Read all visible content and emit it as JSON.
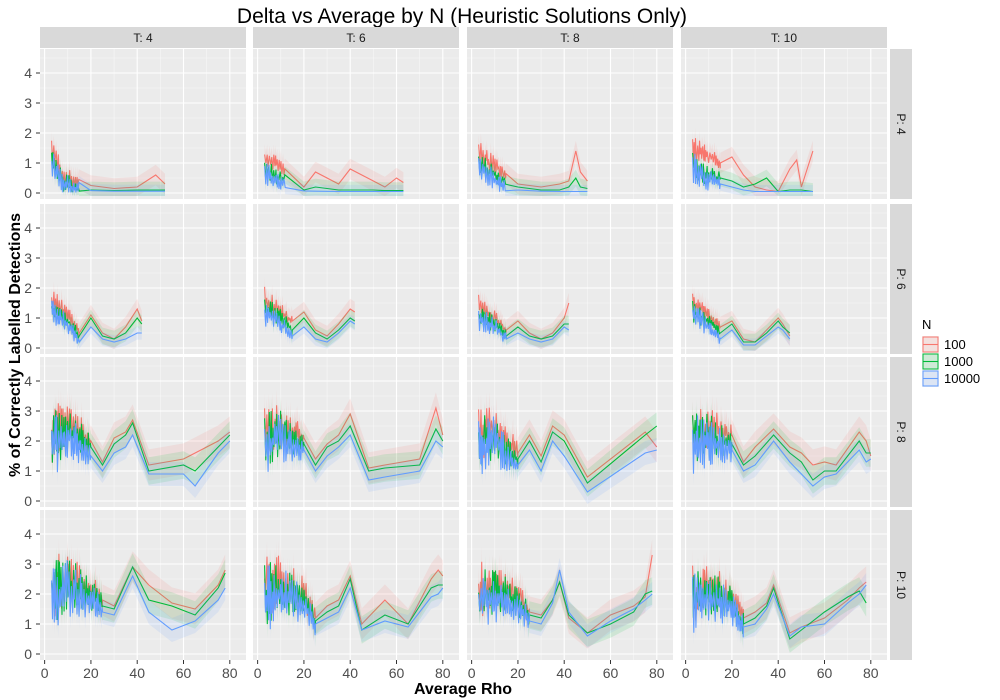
{
  "chart_data": {
    "type": "line",
    "title": "Delta vs Average by N (Heuristic Solutions Only)",
    "xlabel": "Average Rho",
    "ylabel": "% of Correctly Labelled Detections",
    "xlim": [
      -2,
      87
    ],
    "ylim": [
      -0.2,
      4.8
    ],
    "x_ticks": [
      0,
      20,
      40,
      60,
      80
    ],
    "y_ticks": [
      0,
      1,
      2,
      3,
      4
    ],
    "grid": true,
    "legend_position": "right",
    "legend_title": "N",
    "columns": [
      "T: 4",
      "T: 6",
      "T: 8",
      "T: 10"
    ],
    "rows": [
      "P: 4",
      "P: 6",
      "P: 8",
      "P: 10"
    ],
    "series": [
      {
        "name": "100",
        "color": "#f8766d"
      },
      {
        "name": "1000",
        "color": "#00ba38"
      },
      {
        "name": "10000",
        "color": "#619cff"
      }
    ],
    "panels": [
      {
        "col": "T: 4",
        "row": "P: 4",
        "x": [
          3,
          8,
          12,
          20,
          30,
          40,
          48,
          52
        ],
        "series": [
          [
            1.4,
            0.6,
            0.4,
            0.25,
            0.15,
            0.2,
            0.6,
            0.3
          ],
          [
            1.1,
            0.4,
            0.2,
            0.1,
            0.08,
            0.1,
            0.1,
            0.1
          ],
          [
            1.0,
            0.3,
            0.15,
            0.08,
            0.06,
            0.06,
            0.06,
            0.06
          ]
        ],
        "noise_x_max": 15,
        "noise_amp": 1.0
      },
      {
        "col": "T: 6",
        "row": "P: 4",
        "x": [
          3,
          10,
          20,
          25,
          35,
          40,
          50,
          55,
          60,
          63
        ],
        "series": [
          [
            1.2,
            0.9,
            0.2,
            0.7,
            0.3,
            0.8,
            0.4,
            0.2,
            0.5,
            0.35
          ],
          [
            0.8,
            0.5,
            0.1,
            0.2,
            0.1,
            0.1,
            0.1,
            0.08,
            0.08,
            0.08
          ],
          [
            0.7,
            0.3,
            0.07,
            0.06,
            0.05,
            0.05,
            0.05,
            0.05,
            0.05,
            0.05
          ]
        ],
        "noise_x_max": 12,
        "noise_amp": 0.9
      },
      {
        "col": "T: 8",
        "row": "P: 4",
        "x": [
          3,
          12,
          20,
          30,
          38,
          42,
          45,
          47,
          50
        ],
        "series": [
          [
            1.3,
            0.8,
            0.3,
            0.2,
            0.3,
            0.4,
            1.4,
            0.7,
            0.4
          ],
          [
            1.0,
            0.5,
            0.2,
            0.1,
            0.1,
            0.2,
            0.5,
            0.2,
            0.15
          ],
          [
            0.9,
            0.3,
            0.1,
            0.06,
            0.05,
            0.05,
            0.05,
            0.05,
            0.05
          ]
        ],
        "noise_x_max": 15,
        "noise_amp": 0.9
      },
      {
        "col": "T: 10",
        "row": "P: 4",
        "x": [
          3,
          8,
          15,
          20,
          25,
          30,
          35,
          40,
          45,
          48,
          50,
          55
        ],
        "series": [
          [
            1.4,
            1.3,
            1.0,
            1.2,
            0.6,
            0.2,
            0.1,
            0.05,
            0.8,
            1.1,
            0.2,
            1.4
          ],
          [
            1.0,
            0.6,
            0.5,
            0.4,
            0.2,
            0.3,
            0.5,
            0.05,
            0.1,
            0.1,
            0.1,
            0.05
          ],
          [
            0.9,
            0.5,
            0.3,
            0.2,
            0.1,
            0.05,
            0.05,
            0.05,
            0.05,
            0.05,
            0.05,
            0.05
          ]
        ],
        "noise_x_max": 15,
        "noise_amp": 1.0
      },
      {
        "col": "T: 4",
        "row": "P: 6",
        "x": [
          3,
          10,
          15,
          20,
          25,
          30,
          35,
          40,
          42
        ],
        "series": [
          [
            1.6,
            1.1,
            0.5,
            1.1,
            0.5,
            0.3,
            0.7,
            1.3,
            0.9
          ],
          [
            1.3,
            0.9,
            0.4,
            1.0,
            0.4,
            0.3,
            0.5,
            1.0,
            0.8
          ],
          [
            1.2,
            0.8,
            0.2,
            0.7,
            0.3,
            0.2,
            0.3,
            0.5,
            0.5
          ]
        ],
        "noise_x_max": 15,
        "noise_amp": 0.9
      },
      {
        "col": "T: 6",
        "row": "P: 6",
        "x": [
          3,
          10,
          15,
          20,
          25,
          30,
          35,
          40,
          42
        ],
        "series": [
          [
            1.6,
            1.2,
            0.9,
            1.2,
            0.6,
            0.4,
            0.8,
            1.3,
            1.2
          ],
          [
            1.3,
            1.0,
            0.6,
            1.0,
            0.5,
            0.3,
            0.6,
            1.0,
            0.9
          ],
          [
            1.2,
            0.8,
            0.4,
            0.7,
            0.3,
            0.2,
            0.5,
            0.9,
            0.8
          ]
        ],
        "noise_x_max": 15,
        "noise_amp": 0.9
      },
      {
        "col": "T: 8",
        "row": "P: 6",
        "x": [
          3,
          10,
          15,
          20,
          25,
          30,
          35,
          40,
          42
        ],
        "series": [
          [
            1.4,
            1.0,
            0.6,
            0.9,
            0.5,
            0.3,
            0.5,
            1.0,
            1.5
          ],
          [
            1.1,
            0.8,
            0.4,
            0.7,
            0.4,
            0.3,
            0.4,
            0.8,
            0.8
          ],
          [
            1.0,
            0.7,
            0.3,
            0.5,
            0.3,
            0.2,
            0.3,
            0.7,
            0.6
          ]
        ],
        "noise_x_max": 15,
        "noise_amp": 0.8
      },
      {
        "col": "T: 10",
        "row": "P: 6",
        "x": [
          3,
          10,
          15,
          20,
          25,
          30,
          35,
          40,
          42,
          45
        ],
        "series": [
          [
            1.5,
            1.1,
            0.7,
            0.9,
            0.3,
            0.2,
            0.6,
            1.0,
            0.8,
            0.4
          ],
          [
            1.2,
            0.9,
            0.5,
            0.8,
            0.2,
            0.2,
            0.5,
            0.9,
            0.7,
            0.5
          ],
          [
            1.1,
            0.7,
            0.3,
            0.6,
            0.1,
            0.1,
            0.4,
            0.7,
            0.6,
            0.3
          ]
        ],
        "noise_x_max": 15,
        "noise_amp": 0.8
      },
      {
        "col": "T: 4",
        "row": "P: 8",
        "x": [
          3,
          10,
          20,
          25,
          30,
          35,
          38,
          45,
          60,
          65,
          75,
          80
        ],
        "series": [
          [
            2.2,
            2.6,
            2.0,
            1.3,
            2.1,
            2.3,
            2.7,
            1.2,
            1.4,
            1.6,
            2.0,
            2.3
          ],
          [
            2.0,
            2.4,
            1.8,
            1.2,
            1.9,
            2.2,
            2.6,
            1.0,
            1.2,
            1.0,
            1.8,
            2.2
          ],
          [
            1.8,
            2.2,
            1.5,
            1.0,
            1.6,
            1.8,
            2.2,
            0.9,
            0.9,
            0.5,
            1.6,
            2.0
          ]
        ],
        "noise_x_max": 20,
        "noise_amp": 2.0
      },
      {
        "col": "T: 6",
        "row": "P: 8",
        "x": [
          3,
          10,
          20,
          25,
          30,
          35,
          40,
          48,
          55,
          70,
          77,
          80
        ],
        "series": [
          [
            2.2,
            2.5,
            2.1,
            1.4,
            1.9,
            2.2,
            2.9,
            1.1,
            1.2,
            1.4,
            3.1,
            2.2
          ],
          [
            2.0,
            2.3,
            1.9,
            1.2,
            1.8,
            2.0,
            2.5,
            1.0,
            1.1,
            1.2,
            2.4,
            2.0
          ],
          [
            1.8,
            2.1,
            1.7,
            1.0,
            1.5,
            1.8,
            2.2,
            0.7,
            0.8,
            1.0,
            2.0,
            1.8
          ]
        ],
        "noise_x_max": 20,
        "noise_amp": 2.0
      },
      {
        "col": "T: 8",
        "row": "P: 8",
        "x": [
          3,
          10,
          15,
          20,
          25,
          30,
          35,
          40,
          50,
          75,
          80
        ],
        "series": [
          [
            2.2,
            2.4,
            2.0,
            1.6,
            2.2,
            1.5,
            2.5,
            2.2,
            0.8,
            2.3,
            1.8
          ],
          [
            2.0,
            2.2,
            1.7,
            1.4,
            2.0,
            1.3,
            2.3,
            2.0,
            0.6,
            2.2,
            2.5
          ],
          [
            1.8,
            2.0,
            1.5,
            1.2,
            1.7,
            1.0,
            2.0,
            1.5,
            0.3,
            1.6,
            1.7
          ]
        ],
        "noise_x_max": 20,
        "noise_amp": 2.0
      },
      {
        "col": "T: 10",
        "row": "P: 8",
        "x": [
          3,
          10,
          20,
          25,
          30,
          38,
          45,
          50,
          55,
          60,
          65,
          75,
          78,
          80
        ],
        "series": [
          [
            2.3,
            2.4,
            2.2,
            1.3,
            1.8,
            2.4,
            1.8,
            1.6,
            1.2,
            1.3,
            1.2,
            2.3,
            2.0,
            1.5
          ],
          [
            2.1,
            2.2,
            1.9,
            1.2,
            1.5,
            2.2,
            1.6,
            1.3,
            0.7,
            1.0,
            1.0,
            2.0,
            1.6,
            1.6
          ],
          [
            1.9,
            2.0,
            1.7,
            1.0,
            1.2,
            2.0,
            1.3,
            0.9,
            0.5,
            0.8,
            0.9,
            1.7,
            1.3,
            1.4
          ]
        ],
        "noise_x_max": 20,
        "noise_amp": 2.0
      },
      {
        "col": "T: 4",
        "row": "P: 10",
        "x": [
          3,
          10,
          20,
          25,
          30,
          38,
          45,
          55,
          65,
          75,
          78
        ],
        "series": [
          [
            2.2,
            2.6,
            2.2,
            1.8,
            1.6,
            2.9,
            2.3,
            1.7,
            1.5,
            2.3,
            2.8
          ],
          [
            2.0,
            2.4,
            2.0,
            1.6,
            1.5,
            2.9,
            1.8,
            1.6,
            1.3,
            2.2,
            2.7
          ],
          [
            1.8,
            2.2,
            1.8,
            1.4,
            1.3,
            2.6,
            1.4,
            0.8,
            1.1,
            1.8,
            2.2
          ]
        ],
        "noise_x_max": 25,
        "noise_amp": 2.2
      },
      {
        "col": "T: 6",
        "row": "P: 10",
        "x": [
          3,
          10,
          20,
          25,
          30,
          35,
          40,
          45,
          55,
          65,
          75,
          78,
          80
        ],
        "series": [
          [
            2.2,
            2.4,
            2.0,
            1.2,
            1.6,
            1.8,
            2.6,
            1.0,
            1.8,
            1.0,
            2.5,
            2.8,
            2.6
          ],
          [
            2.0,
            2.2,
            1.8,
            1.1,
            1.4,
            1.6,
            2.5,
            0.8,
            1.3,
            1.0,
            2.2,
            2.3,
            2.3
          ],
          [
            1.8,
            2.0,
            1.6,
            1.0,
            1.2,
            1.4,
            2.2,
            0.8,
            1.1,
            0.9,
            1.9,
            2.0,
            2.2
          ]
        ],
        "noise_x_max": 25,
        "noise_amp": 2.2
      },
      {
        "col": "T: 8",
        "row": "P: 10",
        "x": [
          3,
          10,
          20,
          25,
          30,
          35,
          38,
          42,
          50,
          60,
          70,
          75,
          78
        ],
        "series": [
          [
            2.1,
            2.3,
            1.9,
            1.4,
            1.3,
            1.8,
            2.4,
            1.2,
            0.7,
            1.3,
            1.6,
            1.9,
            3.3
          ],
          [
            1.9,
            2.1,
            1.7,
            1.3,
            1.2,
            1.8,
            2.4,
            1.3,
            0.7,
            1.0,
            1.4,
            2.0,
            2.1
          ],
          [
            1.7,
            1.9,
            1.5,
            1.1,
            1.0,
            1.7,
            2.8,
            1.4,
            0.6,
            1.1,
            1.5,
            1.8,
            2.0
          ]
        ],
        "noise_x_max": 25,
        "noise_amp": 2.0
      },
      {
        "col": "T: 10",
        "row": "P: 10",
        "x": [
          3,
          10,
          20,
          25,
          30,
          35,
          38,
          45,
          50,
          60,
          70,
          75,
          78
        ],
        "series": [
          [
            2.0,
            2.3,
            1.9,
            1.2,
            1.4,
            1.7,
            2.3,
            0.7,
            0.9,
            1.2,
            1.8,
            2.2,
            2.4
          ],
          [
            1.8,
            2.1,
            1.7,
            1.0,
            1.2,
            1.6,
            2.2,
            0.5,
            0.8,
            1.4,
            1.9,
            2.1,
            1.7
          ],
          [
            1.6,
            1.9,
            1.5,
            0.9,
            1.0,
            1.5,
            2.0,
            0.6,
            0.9,
            1.0,
            1.7,
            2.0,
            2.3
          ]
        ],
        "noise_x_max": 25,
        "noise_amp": 2.0
      }
    ]
  }
}
